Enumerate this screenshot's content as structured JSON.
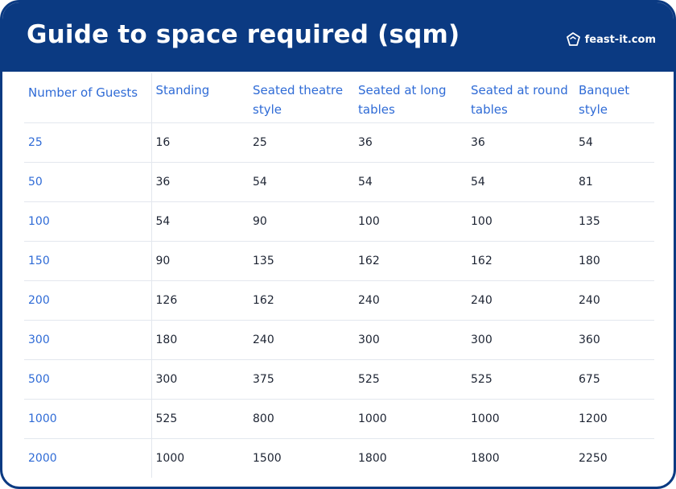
{
  "header": {
    "title": "Guide to space required (sqm)",
    "brand": "feast-it.com"
  },
  "table": {
    "columns": [
      "Number of Guests",
      "Standing",
      "Seated theatre style",
      "Seated at long tables",
      "Seated at round tables",
      "Banquet style"
    ],
    "rows": [
      [
        "25",
        "16",
        "25",
        "36",
        "36",
        "54"
      ],
      [
        "50",
        "36",
        "54",
        "54",
        "54",
        "81"
      ],
      [
        "100",
        "54",
        "90",
        "100",
        "100",
        "135"
      ],
      [
        "150",
        "90",
        "135",
        "162",
        "162",
        "180"
      ],
      [
        "200",
        "126",
        "162",
        "240",
        "240",
        "240"
      ],
      [
        "300",
        "180",
        "240",
        "300",
        "300",
        "360"
      ],
      [
        "500",
        "300",
        "375",
        "525",
        "525",
        "675"
      ],
      [
        "1000",
        "525",
        "800",
        "1000",
        "1000",
        "1200"
      ],
      [
        "2000",
        "1000",
        "1500",
        "1800",
        "1800",
        "2250"
      ]
    ]
  },
  "colors": {
    "header_bg": "#0b3a82",
    "accent_text": "#2f6bd6",
    "body_text": "#1d2433",
    "divider": "#e3e7ee"
  }
}
